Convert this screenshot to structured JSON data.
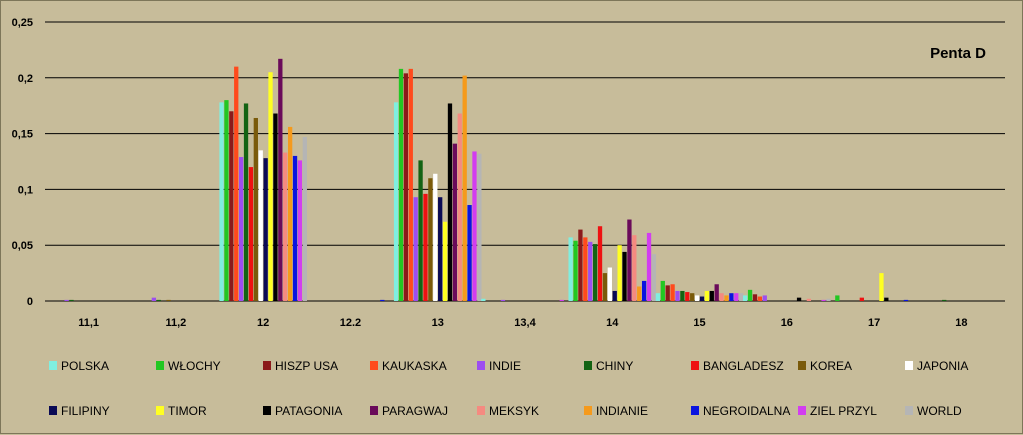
{
  "chart_data": {
    "type": "bar",
    "title": "Penta D",
    "xlabel": "",
    "ylabel": "",
    "ylim": [
      0,
      0.25
    ],
    "yticks": [
      "0",
      "0,05",
      "0,1",
      "0,15",
      "0,2",
      "0,25"
    ],
    "grid": true,
    "legend_position": "bottom",
    "categories": [
      "11,1",
      "11,2",
      "12",
      "12.2",
      "13",
      "13,4",
      "14",
      "15",
      "16",
      "17",
      "18"
    ],
    "series": [
      {
        "name": "POLSKA",
        "color": "#7fefe0",
        "values": [
          0,
          0,
          0.178,
          0,
          0.178,
          0.002,
          0.057,
          0.007,
          0.005,
          0,
          0
        ]
      },
      {
        "name": "WŁOCHY",
        "color": "#22c722",
        "values": [
          0,
          0,
          0.18,
          0,
          0.208,
          0,
          0.054,
          0.018,
          0.01,
          0.005,
          0
        ]
      },
      {
        "name": "HISZP USA",
        "color": "#8b1a1a",
        "values": [
          0,
          0,
          0.17,
          0,
          0.204,
          0,
          0.064,
          0.014,
          0.006,
          0,
          0
        ]
      },
      {
        "name": "KAUKASKA",
        "color": "#ff4a1c",
        "values": [
          0,
          0,
          0.21,
          0,
          0.208,
          0,
          0.057,
          0.015,
          0.004,
          0,
          0
        ]
      },
      {
        "name": "INDIE",
        "color": "#9d4df0",
        "values": [
          0.001,
          0.003,
          0.129,
          0,
          0.093,
          0.001,
          0.053,
          0.009,
          0.005,
          0,
          0
        ]
      },
      {
        "name": "CHINY",
        "color": "#136313",
        "values": [
          0.001,
          0.001,
          0.177,
          0,
          0.126,
          0,
          0.051,
          0.009,
          0,
          0,
          0.001
        ]
      },
      {
        "name": "BANGLADESZ",
        "color": "#ee1111",
        "values": [
          0,
          0,
          0.12,
          0,
          0.096,
          0,
          0.067,
          0.008,
          0,
          0.003,
          0
        ]
      },
      {
        "name": "KOREA",
        "color": "#7a5a0a",
        "values": [
          0,
          0.001,
          0.164,
          0,
          0.11,
          0,
          0.025,
          0.007,
          0,
          0,
          0
        ]
      },
      {
        "name": "JAPONIA",
        "color": "#ffffff",
        "values": [
          0,
          0,
          0.135,
          0,
          0.114,
          0,
          0.03,
          0.005,
          0,
          0,
          0
        ]
      },
      {
        "name": "FILIPINY",
        "color": "#0a0a55",
        "values": [
          0,
          0,
          0.128,
          0,
          0.093,
          0,
          0.009,
          0.004,
          0,
          0,
          0
        ]
      },
      {
        "name": "TIMOR",
        "color": "#ffff22",
        "values": [
          0,
          0,
          0.205,
          0,
          0.071,
          0,
          0.05,
          0.009,
          0,
          0.025,
          0
        ]
      },
      {
        "name": "PATAGONIA",
        "color": "#000000",
        "values": [
          0,
          0,
          0.168,
          0,
          0.177,
          0,
          0.044,
          0.009,
          0.003,
          0.003,
          0
        ]
      },
      {
        "name": "PARAGWAJ",
        "color": "#6a0a5a",
        "values": [
          0,
          0,
          0.217,
          0,
          0.141,
          0,
          0.073,
          0.015,
          0,
          0,
          0
        ]
      },
      {
        "name": "MEKSYK",
        "color": "#f58a80",
        "values": [
          0,
          0,
          0.133,
          0,
          0.168,
          0,
          0.059,
          0.007,
          0.002,
          0,
          0
        ]
      },
      {
        "name": "INDIANIE",
        "color": "#f59a1c",
        "values": [
          0,
          0,
          0.156,
          0,
          0.202,
          0,
          0.013,
          0.005,
          0,
          0,
          0
        ]
      },
      {
        "name": "NEGROIDALNA",
        "color": "#0a14e0",
        "values": [
          0,
          0,
          0.13,
          0.001,
          0.086,
          0,
          0.018,
          0.007,
          0,
          0.001,
          0
        ]
      },
      {
        "name": "ZIEL PRZYL",
        "color": "#d23df0",
        "values": [
          0,
          0,
          0.126,
          0,
          0.134,
          0.001,
          0.061,
          0.007,
          0.001,
          0,
          0
        ]
      },
      {
        "name": "WORLD",
        "color": "#b5b5b5",
        "values": [
          0,
          0,
          0.147,
          0,
          0.132,
          0,
          0.042,
          0.007,
          0.002,
          0,
          0
        ]
      }
    ]
  }
}
